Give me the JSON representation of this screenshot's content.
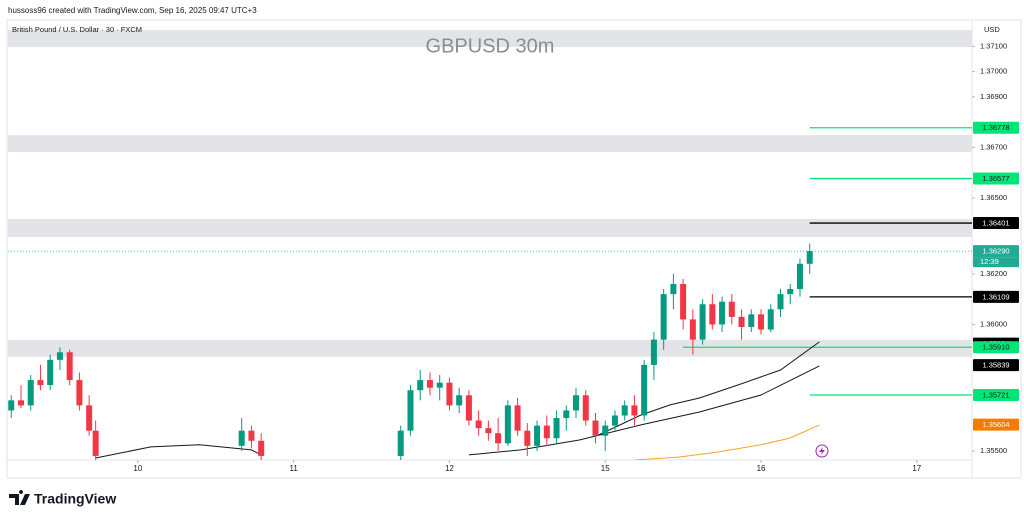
{
  "header": {
    "credit": "hussoss96 created with TradingView.com, Sep 16, 2025 09:47 UTC+3",
    "logo": "TradingView"
  },
  "chart_data": {
    "type": "candlestick",
    "title": "GBPUSD 30m",
    "subtitle": "British Pound / U.S. Dollar · 30 · FXCM",
    "currency": "USD",
    "up_color": "#089981",
    "down_color": "#f23645",
    "xlim": [
      -40,
      257
    ],
    "xticks": [
      {
        "value": 0,
        "label": "10"
      },
      {
        "value": 48,
        "label": "11"
      },
      {
        "value": 96,
        "label": "12"
      },
      {
        "value": 144,
        "label": "15"
      },
      {
        "value": 192,
        "label": "16"
      },
      {
        "value": 240,
        "label": "17"
      }
    ],
    "ylim": [
      1.35464,
      1.37204
    ],
    "yticks": [
      {
        "value": 1.371,
        "label": "1.37100"
      },
      {
        "value": 1.37,
        "label": "1.37000"
      },
      {
        "value": 1.369,
        "label": "1.36900"
      },
      {
        "value": 1.367,
        "label": "1.36700"
      },
      {
        "value": 1.365,
        "label": "1.36500"
      },
      {
        "value": 1.362,
        "label": "1.36200"
      },
      {
        "value": 1.36,
        "label": "1.36000"
      },
      {
        "value": 1.355,
        "label": "1.35500"
      }
    ],
    "x": [
      -39,
      -36,
      -33,
      -30,
      -27,
      -24,
      -21,
      -18,
      -15,
      -13,
      32,
      35,
      38,
      81,
      84,
      87,
      90,
      93,
      96,
      99,
      102,
      105,
      108,
      111,
      114,
      117,
      120,
      123,
      126,
      129,
      132,
      135,
      138,
      141,
      144,
      147,
      150,
      153,
      156,
      159,
      162,
      165,
      168,
      171,
      174,
      177,
      180,
      183,
      186,
      189,
      192,
      195,
      198,
      201,
      204,
      207
    ],
    "open": [
      1.3566,
      1.357,
      1.3568,
      1.3578,
      1.3576,
      1.3586,
      1.3589,
      1.3578,
      1.3568,
      1.3558,
      1.3552,
      1.3558,
      1.3554,
      1.3548,
      1.3558,
      1.3574,
      1.3578,
      1.3575,
      1.3577,
      1.3568,
      1.3572,
      1.3562,
      1.3559,
      1.3557,
      1.3553,
      1.3568,
      1.3558,
      1.3552,
      1.356,
      1.3555,
      1.3563,
      1.3566,
      1.3572,
      1.3562,
      1.3556,
      1.356,
      1.3564,
      1.3568,
      1.3564,
      1.3584,
      1.3594,
      1.3612,
      1.3616,
      1.3602,
      1.3594,
      1.3608,
      1.36,
      1.3609,
      1.3603,
      1.3599,
      1.3604,
      1.3598,
      1.3606,
      1.3612,
      1.3614,
      1.3624
    ],
    "high": [
      1.3572,
      1.3576,
      1.358,
      1.3584,
      1.3588,
      1.3591,
      1.359,
      1.3581,
      1.3572,
      1.3562,
      1.3563,
      1.356,
      1.3557,
      1.356,
      1.3576,
      1.3582,
      1.3581,
      1.358,
      1.3579,
      1.3575,
      1.3574,
      1.3566,
      1.3562,
      1.3563,
      1.357,
      1.3571,
      1.3561,
      1.3562,
      1.3564,
      1.3566,
      1.3568,
      1.3575,
      1.3574,
      1.3565,
      1.3562,
      1.3566,
      1.357,
      1.3572,
      1.3586,
      1.3597,
      1.3614,
      1.362,
      1.3618,
      1.3606,
      1.361,
      1.3612,
      1.3611,
      1.3612,
      1.3606,
      1.3606,
      1.3606,
      1.3608,
      1.3614,
      1.3616,
      1.3626,
      1.3632
    ],
    "low": [
      1.3563,
      1.3567,
      1.3566,
      1.3574,
      1.3574,
      1.3582,
      1.3576,
      1.3566,
      1.3556,
      1.3545,
      1.355,
      1.3551,
      1.3545,
      1.3545,
      1.3556,
      1.357,
      1.3572,
      1.357,
      1.3566,
      1.3565,
      1.356,
      1.3556,
      1.3554,
      1.355,
      1.3552,
      1.3556,
      1.3548,
      1.355,
      1.3552,
      1.3553,
      1.3558,
      1.3563,
      1.356,
      1.3553,
      1.355,
      1.3558,
      1.3562,
      1.356,
      1.3562,
      1.3578,
      1.359,
      1.3606,
      1.3598,
      1.3588,
      1.3592,
      1.3598,
      1.3597,
      1.36,
      1.3594,
      1.3597,
      1.3596,
      1.3597,
      1.3603,
      1.3608,
      1.3611,
      1.362
    ],
    "close": [
      1.357,
      1.3568,
      1.3578,
      1.3576,
      1.3586,
      1.3589,
      1.3578,
      1.3568,
      1.3558,
      1.3548,
      1.3558,
      1.3554,
      1.3548,
      1.3558,
      1.3574,
      1.3578,
      1.3575,
      1.3577,
      1.3568,
      1.3572,
      1.3562,
      1.3559,
      1.3557,
      1.3553,
      1.3568,
      1.3558,
      1.3552,
      1.356,
      1.3555,
      1.3563,
      1.3566,
      1.3572,
      1.3562,
      1.3556,
      1.356,
      1.3564,
      1.3568,
      1.3564,
      1.3584,
      1.3594,
      1.3612,
      1.3616,
      1.3602,
      1.3594,
      1.3608,
      1.36,
      1.3609,
      1.3603,
      1.3599,
      1.3604,
      1.3598,
      1.3606,
      1.3612,
      1.3614,
      1.3624,
      1.3629
    ],
    "lines": [
      {
        "color": "#131722",
        "x": [
          142,
          155,
          164,
          173,
          185,
          198,
          210
        ],
        "values": [
          1.35563,
          1.35642,
          1.35682,
          1.35709,
          1.35761,
          1.3582,
          1.35931
        ]
      },
      {
        "color": "#131722",
        "x": [
          -13,
          4,
          19,
          35,
          38,
          null,
          102,
          118,
          136,
          155,
          173,
          192,
          210
        ],
        "values": [
          1.35472,
          1.35516,
          1.35524,
          1.35504,
          1.35484,
          null,
          1.35484,
          1.35504,
          1.35543,
          1.35603,
          1.35654,
          1.35721,
          1.35836
        ]
      },
      {
        "color": "#f5a623",
        "x": [
          153,
          167,
          179,
          192,
          201,
          210
        ],
        "values": [
          1.35464,
          1.35476,
          1.35496,
          1.35524,
          1.35551,
          1.35603
        ]
      }
    ],
    "zones": [
      [
        1.37097,
        1.37164
      ],
      [
        1.36682,
        1.36749
      ],
      [
        1.36346,
        1.36417
      ],
      [
        1.35872,
        1.35939
      ]
    ],
    "levels": [
      {
        "value": 1.36778,
        "label": "1.36778",
        "color": "#00e676",
        "from": 207
      },
      {
        "value": 1.36577,
        "label": "1.36577",
        "color": "#00e676",
        "from": 207
      },
      {
        "value": 1.36401,
        "label": "1.36401",
        "color": "#000000",
        "from": 207
      },
      {
        "value": 1.36109,
        "label": "1.36109",
        "color": "#000000",
        "from": 207
      },
      {
        "value": 1.35924,
        "label": "1.35924",
        "color": "#000000"
      },
      {
        "value": 1.3591,
        "label": "1.35910",
        "color": "#00e676",
        "from": 168
      },
      {
        "value": 1.35839,
        "label": "1.35839",
        "color": "#000000"
      },
      {
        "value": 1.35721,
        "label": "1.35721",
        "color": "#00e676",
        "from": 207
      },
      {
        "value": 1.35604,
        "label": "1.35604",
        "color": "#f57c00"
      }
    ],
    "last_price": {
      "value": 1.3629,
      "label": "1.36290",
      "countdown": "12:39",
      "color": "#22ab94"
    }
  }
}
